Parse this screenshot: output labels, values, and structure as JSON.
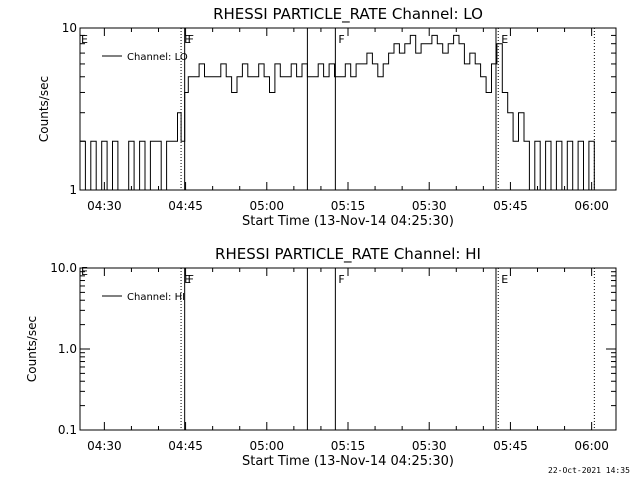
{
  "footer_timestamp": "22-Oct-2021 14:35",
  "chart_data": [
    {
      "type": "line",
      "title": "RHESSI PARTICLE_RATE Channel: LO",
      "xlabel": "Start Time (13-Nov-14 04:25:30)",
      "ylabel": "Counts/sec",
      "yscale": "log",
      "ylim": [
        1,
        10
      ],
      "xlim": [
        "04:25:30",
        "06:04:30"
      ],
      "x_ticks": [
        "04:30",
        "04:45",
        "05:00",
        "05:15",
        "05:30",
        "05:45",
        "06:00"
      ],
      "y_ticks": [
        "1",
        "10"
      ],
      "legend": {
        "label": "Channel: LO",
        "placement": "top-left"
      },
      "markers": [
        {
          "time": "04:44:10",
          "label": "E",
          "style": "dotted"
        },
        {
          "time": "04:44:50",
          "label": "F",
          "style": "solid"
        },
        {
          "time": "05:07:30",
          "label": "",
          "style": "solid"
        },
        {
          "time": "05:12:40",
          "label": "F",
          "style": "solid"
        },
        {
          "time": "05:42:20",
          "label": "",
          "style": "solid"
        },
        {
          "time": "05:42:45",
          "label": "E",
          "style": "dotted"
        },
        {
          "time": "06:00:30",
          "label": "",
          "style": "dotted"
        }
      ],
      "series": [
        {
          "name": "Channel: LO",
          "x": [
            "04:25:30",
            "04:26:30",
            "04:27:30",
            "04:28:30",
            "04:29:30",
            "04:30:30",
            "04:31:30",
            "04:32:30",
            "04:33:30",
            "04:34:30",
            "04:35:30",
            "04:36:30",
            "04:37:30",
            "04:38:30",
            "04:39:30",
            "04:40:30",
            "04:41:30",
            "04:42:30",
            "04:43:30",
            "04:44:10",
            "04:44:50",
            "04:45:30",
            "04:46:30",
            "04:47:30",
            "04:48:30",
            "04:49:30",
            "04:50:30",
            "04:51:30",
            "04:52:30",
            "04:53:30",
            "04:54:30",
            "04:55:30",
            "04:56:30",
            "04:57:30",
            "04:58:30",
            "04:59:30",
            "05:00:30",
            "05:01:30",
            "05:02:30",
            "05:03:30",
            "05:04:30",
            "05:05:30",
            "05:06:30",
            "05:07:30",
            "05:08:30",
            "05:09:30",
            "05:10:30",
            "05:11:30",
            "05:12:30",
            "05:13:30",
            "05:14:30",
            "05:15:30",
            "05:16:30",
            "05:17:30",
            "05:18:30",
            "05:19:30",
            "05:20:30",
            "05:21:30",
            "05:22:30",
            "05:23:30",
            "05:24:30",
            "05:25:30",
            "05:26:30",
            "05:27:30",
            "05:28:30",
            "05:29:30",
            "05:30:30",
            "05:31:30",
            "05:32:30",
            "05:33:30",
            "05:34:30",
            "05:35:30",
            "05:36:30",
            "05:37:30",
            "05:38:30",
            "05:39:30",
            "05:40:30",
            "05:41:30",
            "05:42:30",
            "05:43:30",
            "05:44:30",
            "05:45:30",
            "05:46:30",
            "05:47:30",
            "05:48:30",
            "05:49:30",
            "05:50:30",
            "05:51:30",
            "05:52:30",
            "05:53:30",
            "05:54:30",
            "05:55:30",
            "05:56:30",
            "05:57:30",
            "05:58:30",
            "05:59:30",
            "06:00:30"
          ],
          "values": [
            2,
            1,
            2,
            1,
            2,
            1,
            2,
            1,
            1,
            2,
            1,
            2,
            1,
            2,
            2,
            1,
            2,
            2,
            3,
            2,
            4,
            5,
            5,
            6,
            5,
            5,
            5,
            6,
            5,
            4,
            5,
            6,
            5,
            5,
            6,
            5,
            4,
            6,
            5,
            5,
            6,
            5,
            6,
            5,
            5,
            6,
            5,
            6,
            5,
            5,
            6,
            5,
            6,
            6,
            7,
            6,
            5,
            6,
            7,
            8,
            7,
            8,
            9,
            7,
            8,
            8,
            9,
            8,
            7,
            8,
            9,
            8,
            6,
            7,
            6,
            5,
            4,
            6,
            8,
            4,
            3,
            2,
            3,
            2,
            1,
            2,
            1,
            2,
            1,
            2,
            1,
            2,
            1,
            2,
            1,
            2,
            1
          ]
        }
      ]
    },
    {
      "type": "line",
      "title": "RHESSI PARTICLE_RATE Channel: HI",
      "xlabel": "Start Time (13-Nov-14 04:25:30)",
      "ylabel": "Counts/sec",
      "yscale": "log",
      "ylim": [
        0.1,
        10
      ],
      "xlim": [
        "04:25:30",
        "06:04:30"
      ],
      "x_ticks": [
        "04:30",
        "04:45",
        "05:00",
        "05:15",
        "05:30",
        "05:45",
        "06:00"
      ],
      "y_ticks": [
        "0.1",
        "1.0",
        "10.0"
      ],
      "legend": {
        "label": "Channel: HI",
        "placement": "top-left"
      },
      "markers": [
        {
          "time": "04:44:10",
          "label": "E",
          "style": "dotted"
        },
        {
          "time": "04:44:50",
          "label": "F",
          "style": "solid"
        },
        {
          "time": "05:07:30",
          "label": "",
          "style": "solid"
        },
        {
          "time": "05:12:40",
          "label": "F",
          "style": "solid"
        },
        {
          "time": "05:42:20",
          "label": "",
          "style": "solid"
        },
        {
          "time": "05:42:45",
          "label": "E",
          "style": "dotted"
        },
        {
          "time": "06:00:30",
          "label": "",
          "style": "dotted"
        }
      ],
      "corner_label": "E",
      "series": [
        {
          "name": "Channel: HI",
          "x": [],
          "values": []
        }
      ]
    }
  ]
}
